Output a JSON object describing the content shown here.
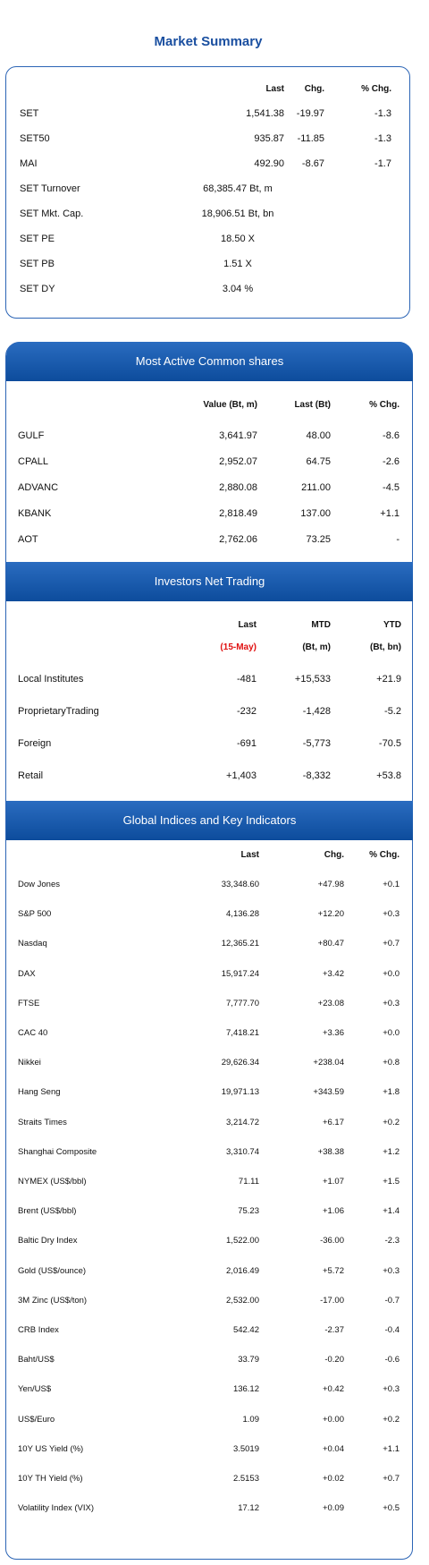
{
  "title": "Market Summary",
  "market_summary": {
    "columns": [
      "Last",
      "Chg.",
      "% Chg."
    ],
    "rows": [
      [
        "SET",
        "1,541.38",
        "-19.97",
        "-1.3"
      ],
      [
        "SET50",
        "935.87",
        "-11.85",
        "-1.3"
      ],
      [
        "MAI",
        "492.90",
        "-8.67",
        "-1.7"
      ],
      [
        "SET Turnover",
        "68,385.47 Bt, m"
      ],
      [
        "SET Mkt. Cap.",
        "18,906.51 Bt, bn"
      ],
      [
        "SET PE",
        "18.50 X"
      ],
      [
        "SET PB",
        "1.51 X"
      ],
      [
        "SET DY",
        "3.04 %"
      ]
    ]
  },
  "most_active": {
    "title": "Most Active Common shares",
    "columns": [
      "Value (Bt, m)",
      "Last (Bt)",
      "% Chg."
    ],
    "rows": [
      [
        "GULF",
        "3,641.97",
        "48.00",
        "-8.6"
      ],
      [
        "CPALL",
        "2,952.07",
        "64.75",
        "-2.6"
      ],
      [
        "ADVANC",
        "2,880.08",
        "211.00",
        "-4.5"
      ],
      [
        "KBANK",
        "2,818.49",
        "137.00",
        "+1.1"
      ],
      [
        "AOT",
        "2,762.06",
        "73.25",
        "-"
      ]
    ]
  },
  "investors": {
    "title": "Investors Net Trading",
    "columns": [
      "Last",
      "MTD",
      "YTD"
    ],
    "subcolumns": [
      "(15-May)",
      "(Bt, m)",
      "(Bt, bn)"
    ],
    "rows": [
      [
        "Local Institutes",
        "-481",
        "+15,533",
        "+21.9"
      ],
      [
        "ProprietaryTrading",
        "-232",
        "-1,428",
        "-5.2"
      ],
      [
        "Foreign",
        "-691",
        "-5,773",
        "-70.5"
      ],
      [
        "Retail",
        "+1,403",
        "-8,332",
        "+53.8"
      ]
    ]
  },
  "global": {
    "title": "Global Indices and Key Indicators",
    "columns": [
      "Last",
      "Chg.",
      "% Chg."
    ],
    "rows": [
      [
        "Dow Jones",
        "33,348.60",
        "+47.98",
        "+0.1"
      ],
      [
        "S&P 500",
        "4,136.28",
        "+12.20",
        "+0.3"
      ],
      [
        "Nasdaq",
        "12,365.21",
        "+80.47",
        "+0.7"
      ],
      [
        "DAX",
        "15,917.24",
        "+3.42",
        "+0.0"
      ],
      [
        "FTSE",
        "7,777.70",
        "+23.08",
        "+0.3"
      ],
      [
        "CAC 40",
        "7,418.21",
        "+3.36",
        "+0.0"
      ],
      [
        "Nikkei",
        "29,626.34",
        "+238.04",
        "+0.8"
      ],
      [
        "Hang Seng",
        "19,971.13",
        "+343.59",
        "+1.8"
      ],
      [
        "Straits Times",
        "3,214.72",
        "+6.17",
        "+0.2"
      ],
      [
        "Shanghai Composite",
        "3,310.74",
        "+38.38",
        "+1.2"
      ],
      [
        "NYMEX (US$/bbl)",
        "71.11",
        "+1.07",
        "+1.5"
      ],
      [
        "Brent (US$/bbl)",
        "75.23",
        "+1.06",
        "+1.4"
      ],
      [
        "Baltic Dry Index",
        "1,522.00",
        "-36.00",
        "-2.3"
      ],
      [
        "Gold (US$/ounce)",
        "2,016.49",
        "+5.72",
        "+0.3"
      ],
      [
        "3M Zinc (US$/ton)",
        "2,532.00",
        "-17.00",
        "-0.7"
      ],
      [
        "CRB Index",
        "542.42",
        "-2.37",
        "-0.4"
      ],
      [
        "Baht/US$",
        "33.79",
        "-0.20",
        "-0.6"
      ],
      [
        "Yen/US$",
        "136.12",
        "+0.42",
        "+0.3"
      ],
      [
        "US$/Euro",
        "1.09",
        "+0.00",
        "+0.2"
      ],
      [
        "10Y US Yield (%)",
        "3.5019",
        "+0.04",
        "+1.1"
      ],
      [
        "10Y TH Yield (%)",
        "2.5153",
        "+0.02",
        "+0.7"
      ],
      [
        "Volatility Index (VIX)",
        "17.12",
        "+0.09",
        "+0.5"
      ]
    ]
  }
}
